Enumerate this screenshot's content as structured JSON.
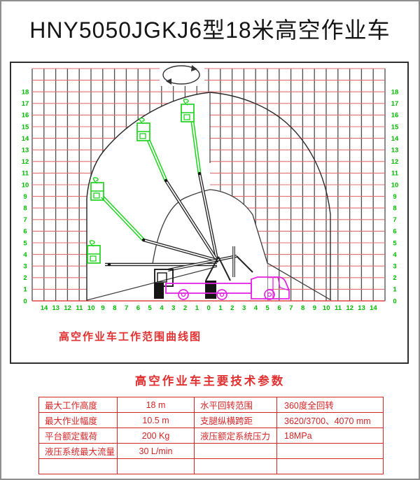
{
  "title": "HNY5050JGKJ6型18米高空作业车",
  "diagram": {
    "caption": "高空作业车工作范围曲线图",
    "y_axis_labels": [
      "18",
      "17",
      "16",
      "15",
      "14",
      "13",
      "12",
      "11",
      "10",
      "9",
      "8",
      "7",
      "6",
      "5",
      "4",
      "3",
      "2",
      "1",
      "0"
    ],
    "x_axis_labels": [
      "14",
      "13",
      "12",
      "11",
      "10",
      "9",
      "8",
      "7",
      "6",
      "5",
      "4",
      "3",
      "2",
      "1",
      "0",
      "1",
      "2",
      "3",
      "4",
      "5",
      "6",
      "7",
      "8",
      "9",
      "10",
      "11",
      "12",
      "13",
      "14"
    ],
    "max_height_m": 18,
    "max_outreach_m": 10.5,
    "colors": {
      "grid_red": "#e07070",
      "grid_dark": "#4d4d4d",
      "axis_green": "#00bb00",
      "boom_green": "#1fd41f",
      "envelope_black": "#2b2b2b",
      "truck_magenta": "#e324e3",
      "accent_red": "#d42525"
    }
  },
  "table": {
    "title": "高空作业车主要技术参数",
    "rows": [
      {
        "param1": "最大工作高度",
        "value1": "18 m",
        "param2": "水平回转范围",
        "value2": "360度全回转"
      },
      {
        "param1": "最大作业幅度",
        "value1": "10.5 m",
        "param2": "支腿纵横跨距",
        "value2": "3620/3700、4070 mm"
      },
      {
        "param1": "平台额定载荷",
        "value1": "200 Kg",
        "param2": "液压额定系统压力",
        "value2": "18MPa"
      },
      {
        "param1": "液压系统最大流量",
        "value1": "30 L/min",
        "param2": "",
        "value2": ""
      },
      {
        "param1": "",
        "value1": "",
        "param2": "",
        "value2": ""
      }
    ]
  }
}
